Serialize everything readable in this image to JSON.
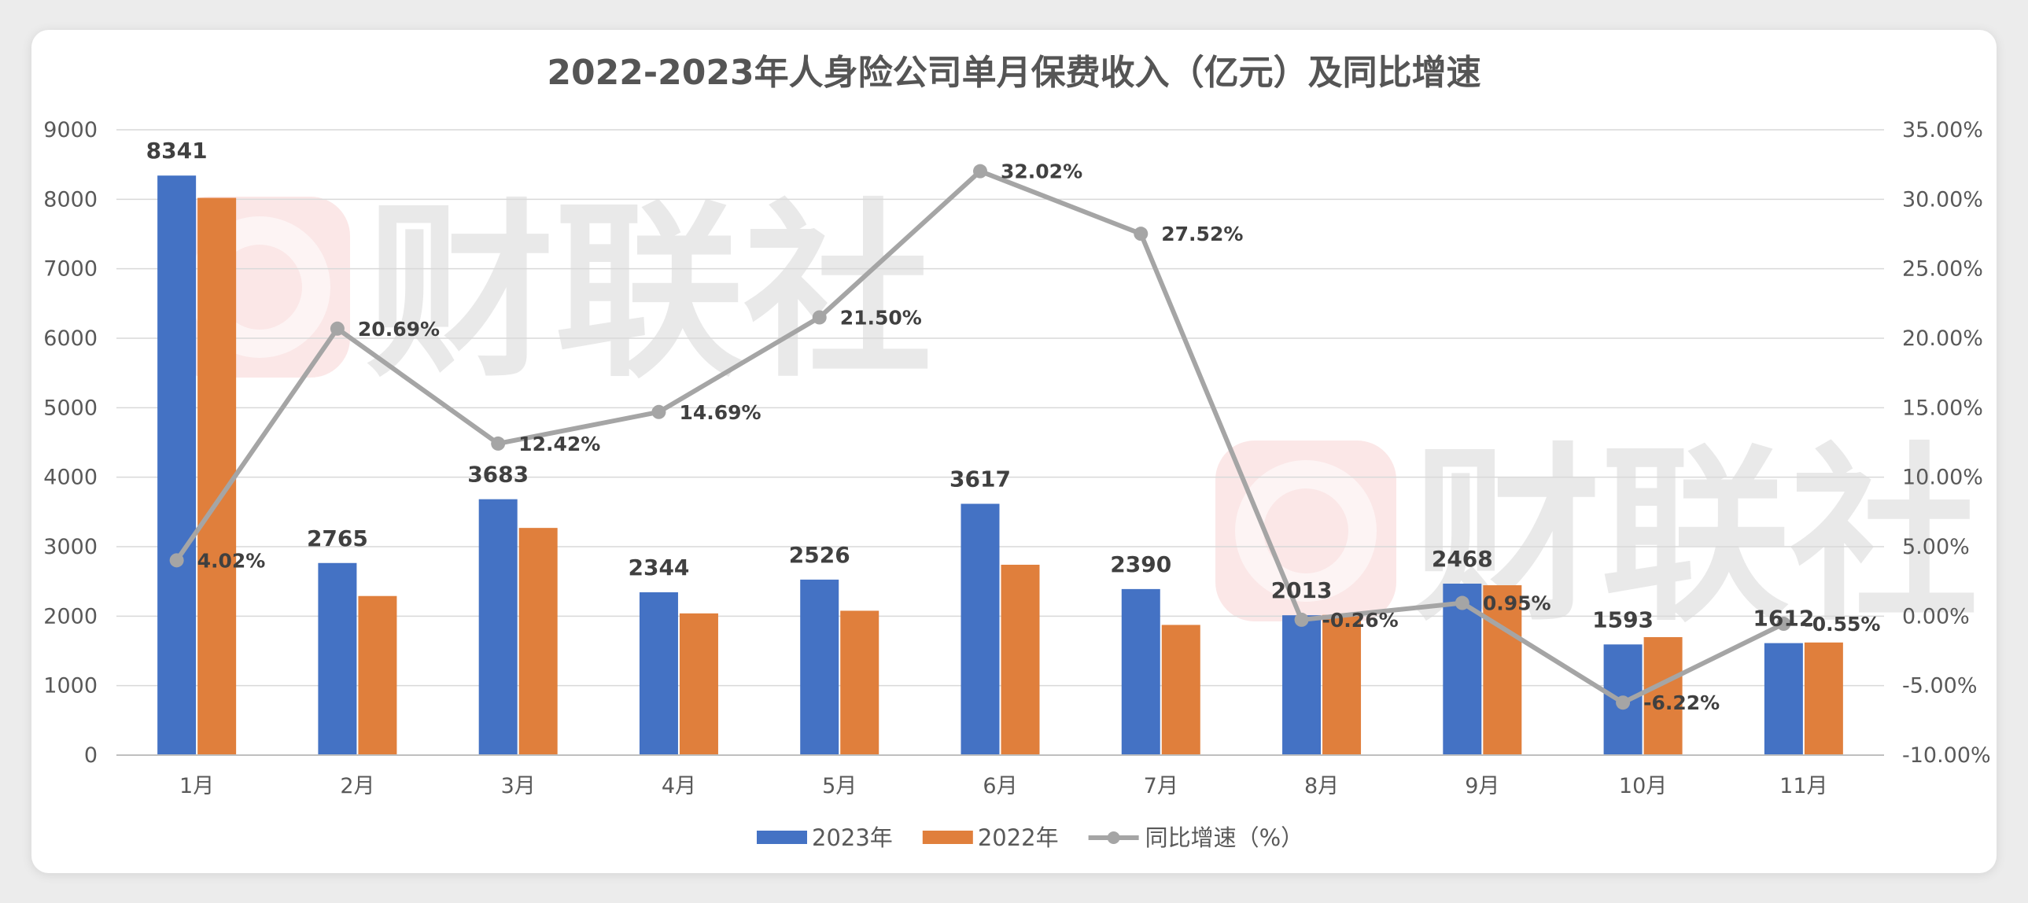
{
  "chart_data": {
    "type": "bar",
    "title": "2022-2023年人身险公司单月保费收入（亿元）及同比增速",
    "categories": [
      "1月",
      "2月",
      "3月",
      "4月",
      "5月",
      "6月",
      "7月",
      "8月",
      "9月",
      "10月",
      "11月"
    ],
    "series": [
      {
        "name": "2023年",
        "type": "bar",
        "axis": "left",
        "color": "#4472c4",
        "values": [
          8341,
          2765,
          3683,
          2344,
          2526,
          3617,
          2390,
          2013,
          2468,
          1593,
          1612
        ],
        "labels": [
          "8341",
          "2765",
          "3683",
          "2344",
          "2526",
          "3617",
          "2390",
          "2013",
          "2468",
          "1593",
          "1612"
        ]
      },
      {
        "name": "2022年",
        "type": "bar",
        "axis": "left",
        "color": "#e07f3c",
        "values": [
          8020,
          2290,
          3270,
          2040,
          2078,
          2740,
          1874,
          2018,
          2445,
          1698,
          1621
        ]
      },
      {
        "name": "同比增速（%）",
        "type": "line",
        "axis": "right",
        "color": "#a5a5a5",
        "values": [
          4.02,
          20.69,
          12.42,
          14.69,
          21.5,
          32.02,
          27.52,
          -0.26,
          0.95,
          -6.22,
          -0.55
        ],
        "labels": [
          "4.02%",
          "20.69%",
          "12.42%",
          "14.69%",
          "21.50%",
          "32.02%",
          "27.52%",
          "-0.26%",
          "0.95%",
          "-6.22%",
          "-0.55%"
        ]
      }
    ],
    "y_left": {
      "ylim": [
        0,
        9000
      ],
      "ticks": [
        "0",
        "1000",
        "2000",
        "3000",
        "4000",
        "5000",
        "6000",
        "7000",
        "8000",
        "9000"
      ]
    },
    "y_right": {
      "ylim": [
        -10,
        35
      ],
      "ticks": [
        "-10.00%",
        "-5.00%",
        "0.00%",
        "5.00%",
        "10.00%",
        "15.00%",
        "20.00%",
        "25.00%",
        "30.00%",
        "35.00%"
      ]
    },
    "grid": true,
    "legend": "bottom"
  },
  "watermark": {
    "text": "财联社",
    "color": "#e65454"
  }
}
